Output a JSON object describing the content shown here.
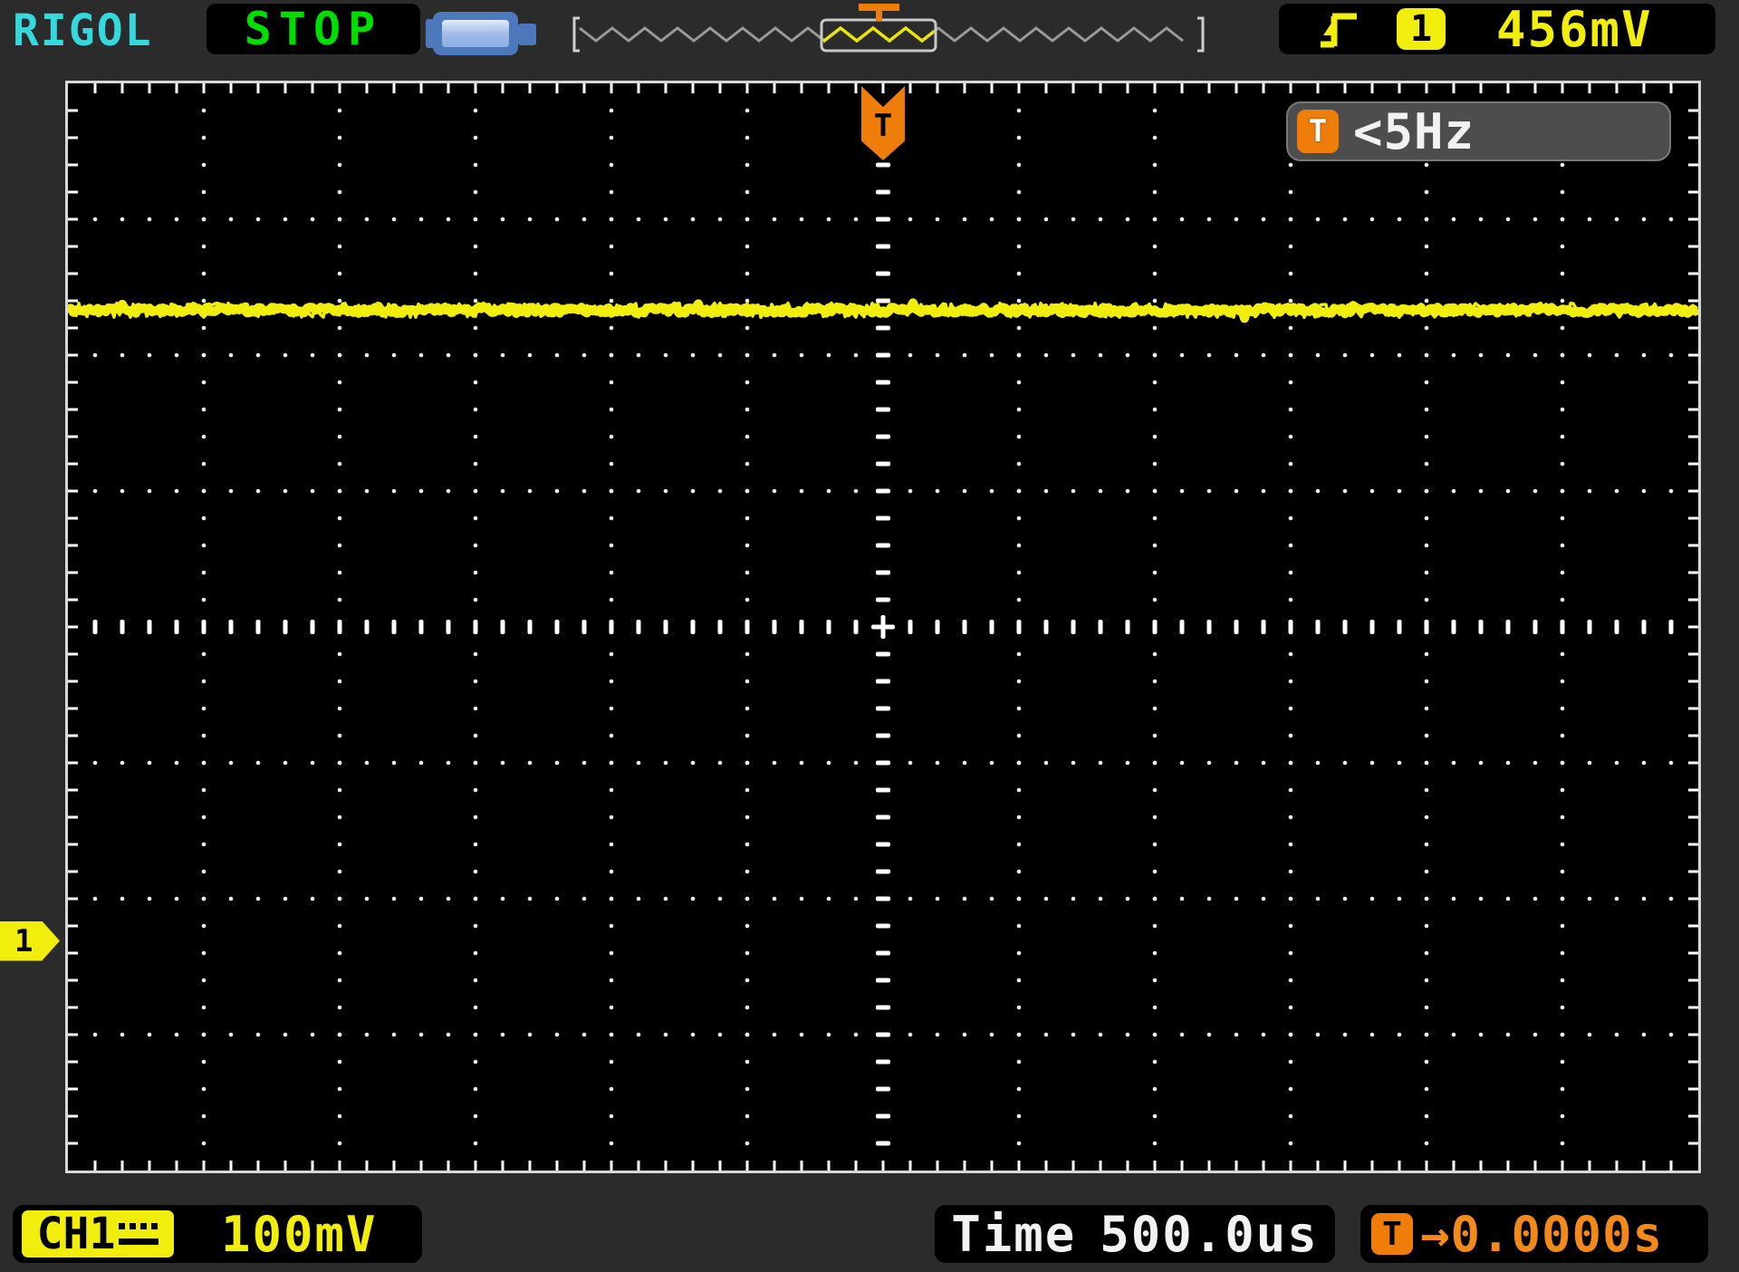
{
  "brand": "RIGOL",
  "run_status": "STOP",
  "usb_icon": "usb-storage-icon",
  "horizontal_strip": {
    "description": "horizontal position strip with waveform overview and trigger window",
    "trigger_marker_label": "T"
  },
  "trigger_info": {
    "slope_icon": "rising-edge-icon",
    "source_channel": "1",
    "level": "456mV"
  },
  "trigger_banner": {
    "icon_label": "T",
    "text": "<5Hz"
  },
  "trigger_position_marker": {
    "label": "T"
  },
  "channel_marker": {
    "label": "1"
  },
  "bottom": {
    "channel_badge": "CH1",
    "coupling_icon": "dc-coupling-icon",
    "scale": "100mV",
    "time_label": "Time",
    "time_scale": "500.0us",
    "trigger_icon_label": "T",
    "trigger_offset": "→0.0000s"
  },
  "chart_data": {
    "type": "line",
    "title": "Oscilloscope CH1 trace (RIGOL display)",
    "x_axis": {
      "label": "time",
      "divisions": 12,
      "subdivisions_per_div": 5,
      "time_per_div": "500.0us"
    },
    "y_axis": {
      "label": "voltage",
      "divisions": 8,
      "subdivisions_per_div": 5,
      "volts_per_div": "100mV"
    },
    "grid": "black graticule, dotted division lines, dashed center crosshair, tick marks on borders",
    "legend_position": "none",
    "series": [
      {
        "name": "CH1",
        "color": "#f1ee0e",
        "shape": "flat noisy DC level, horizontal across all 12 divisions",
        "value_div_above_center": 2.33,
        "approx_level_mv_above_center": 233,
        "noise_peak_to_peak_div": 0.12,
        "ground_marker_div_below_center": 2.31
      }
    ],
    "trigger": {
      "source": "CH1",
      "level": "456mV",
      "offset": "0.0000s",
      "frequency_readout": "<5Hz",
      "position_div_from_center": 0,
      "acquisition_state": "STOP"
    }
  }
}
